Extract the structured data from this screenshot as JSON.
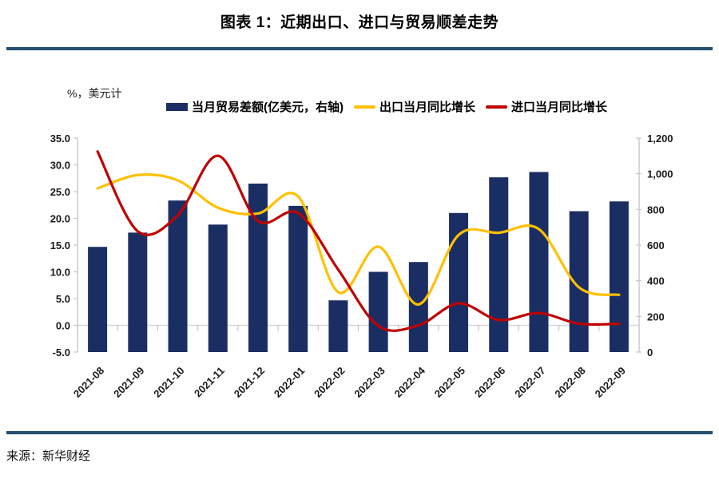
{
  "title": "图表 1：近期出口、进口与贸易顺差走势",
  "axis_note": "%，美元计",
  "source": "来源：新华财经",
  "colors": {
    "bar": "#1B2E63",
    "export_line": "#FFC000",
    "import_line": "#C00000",
    "rule": "#235070",
    "axis": "#C6C6C6",
    "grid": "#D6D6D6"
  },
  "legend": [
    {
      "label": "当月贸易差额(亿美元，右轴)",
      "marker": "bar"
    },
    {
      "label": "出口当月同比增长",
      "marker": "line-yellow"
    },
    {
      "label": "进口当月同比增长",
      "marker": "line-red"
    }
  ],
  "chart_data": {
    "type": "bar",
    "subtype": "combo-bar-line",
    "title": "图表 1：近期出口、进口与贸易顺差走势",
    "categories": [
      "2021-08",
      "2021-09",
      "2021-10",
      "2021-11",
      "2021-12",
      "2022-01",
      "2022-02",
      "2022-03",
      "2022-04",
      "2022-05",
      "2022-06",
      "2022-07",
      "2022-08",
      "2022-09"
    ],
    "series": [
      {
        "name": "当月贸易差额(亿美元，右轴)",
        "type": "bar",
        "axis": "right",
        "values": [
          590,
          670,
          850,
          715,
          945,
          820,
          290,
          450,
          505,
          780,
          980,
          1010,
          790,
          845
        ]
      },
      {
        "name": "出口当月同比增长",
        "type": "line",
        "axis": "left",
        "color_key": "export_line",
        "values": [
          25.6,
          28.1,
          27.1,
          22.0,
          20.9,
          24.1,
          6.2,
          14.7,
          3.9,
          16.9,
          17.3,
          18.0,
          7.1,
          5.7
        ]
      },
      {
        "name": "进口当月同比增长",
        "type": "line",
        "axis": "left",
        "color_key": "import_line",
        "values": [
          32.5,
          17.6,
          20.6,
          31.7,
          19.5,
          21.0,
          10.4,
          -0.1,
          0.0,
          4.1,
          1.0,
          2.3,
          0.3,
          0.3
        ]
      }
    ],
    "left_axis": {
      "min": -5,
      "max": 35,
      "label": "%，美元计",
      "ticks": [
        "35.0",
        "30.0",
        "25.0",
        "20.0",
        "15.0",
        "10.0",
        "5.0",
        "0.0",
        "-5.0"
      ]
    },
    "right_axis": {
      "min": 0,
      "max": 1200,
      "label": "亿美元",
      "ticks": [
        "1,200",
        "1,000",
        "800",
        "600",
        "400",
        "200",
        "0"
      ]
    },
    "grid": "zero-line-only",
    "legend_position": "top"
  }
}
